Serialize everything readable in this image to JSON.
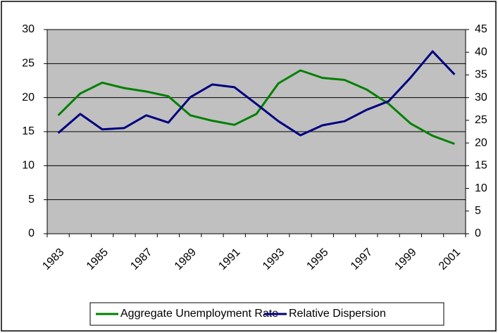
{
  "chart_data": {
    "type": "line",
    "categories": [
      "1983",
      null,
      "1985",
      null,
      "1987",
      null,
      "1989",
      null,
      "1991",
      null,
      "1993",
      null,
      "1995",
      null,
      "1997",
      null,
      "1999",
      null,
      "2001"
    ],
    "series": [
      {
        "name": "Aggregate Unemployment Rate",
        "color": "#008000",
        "values": [
          17.4,
          20.6,
          22.2,
          21.4,
          20.9,
          20.2,
          17.4,
          16.6,
          16.0,
          17.6,
          22.1,
          24.0,
          22.9,
          22.6,
          21.2,
          19.1,
          16.2,
          14.4,
          13.2
        ]
      },
      {
        "name": "Relative Dispersion",
        "color": "#000080",
        "axis": "y2",
        "values": [
          22.2,
          26.4,
          23.0,
          23.3,
          26.1,
          24.5,
          30.1,
          32.9,
          32.3,
          28.6,
          24.8,
          21.7,
          23.9,
          24.8,
          27.3,
          29.2,
          34.4,
          40.2,
          35.1
        ]
      }
    ],
    "ylim": [
      0,
      30
    ],
    "yticks": [
      0,
      5,
      10,
      15,
      20,
      25,
      30
    ],
    "y2lim": [
      0,
      45
    ],
    "y2ticks": [
      0,
      5,
      10,
      15,
      20,
      25,
      30,
      35,
      40,
      45
    ],
    "grid": true,
    "legend": "bottom",
    "plot_background": "#c0c0c0"
  }
}
